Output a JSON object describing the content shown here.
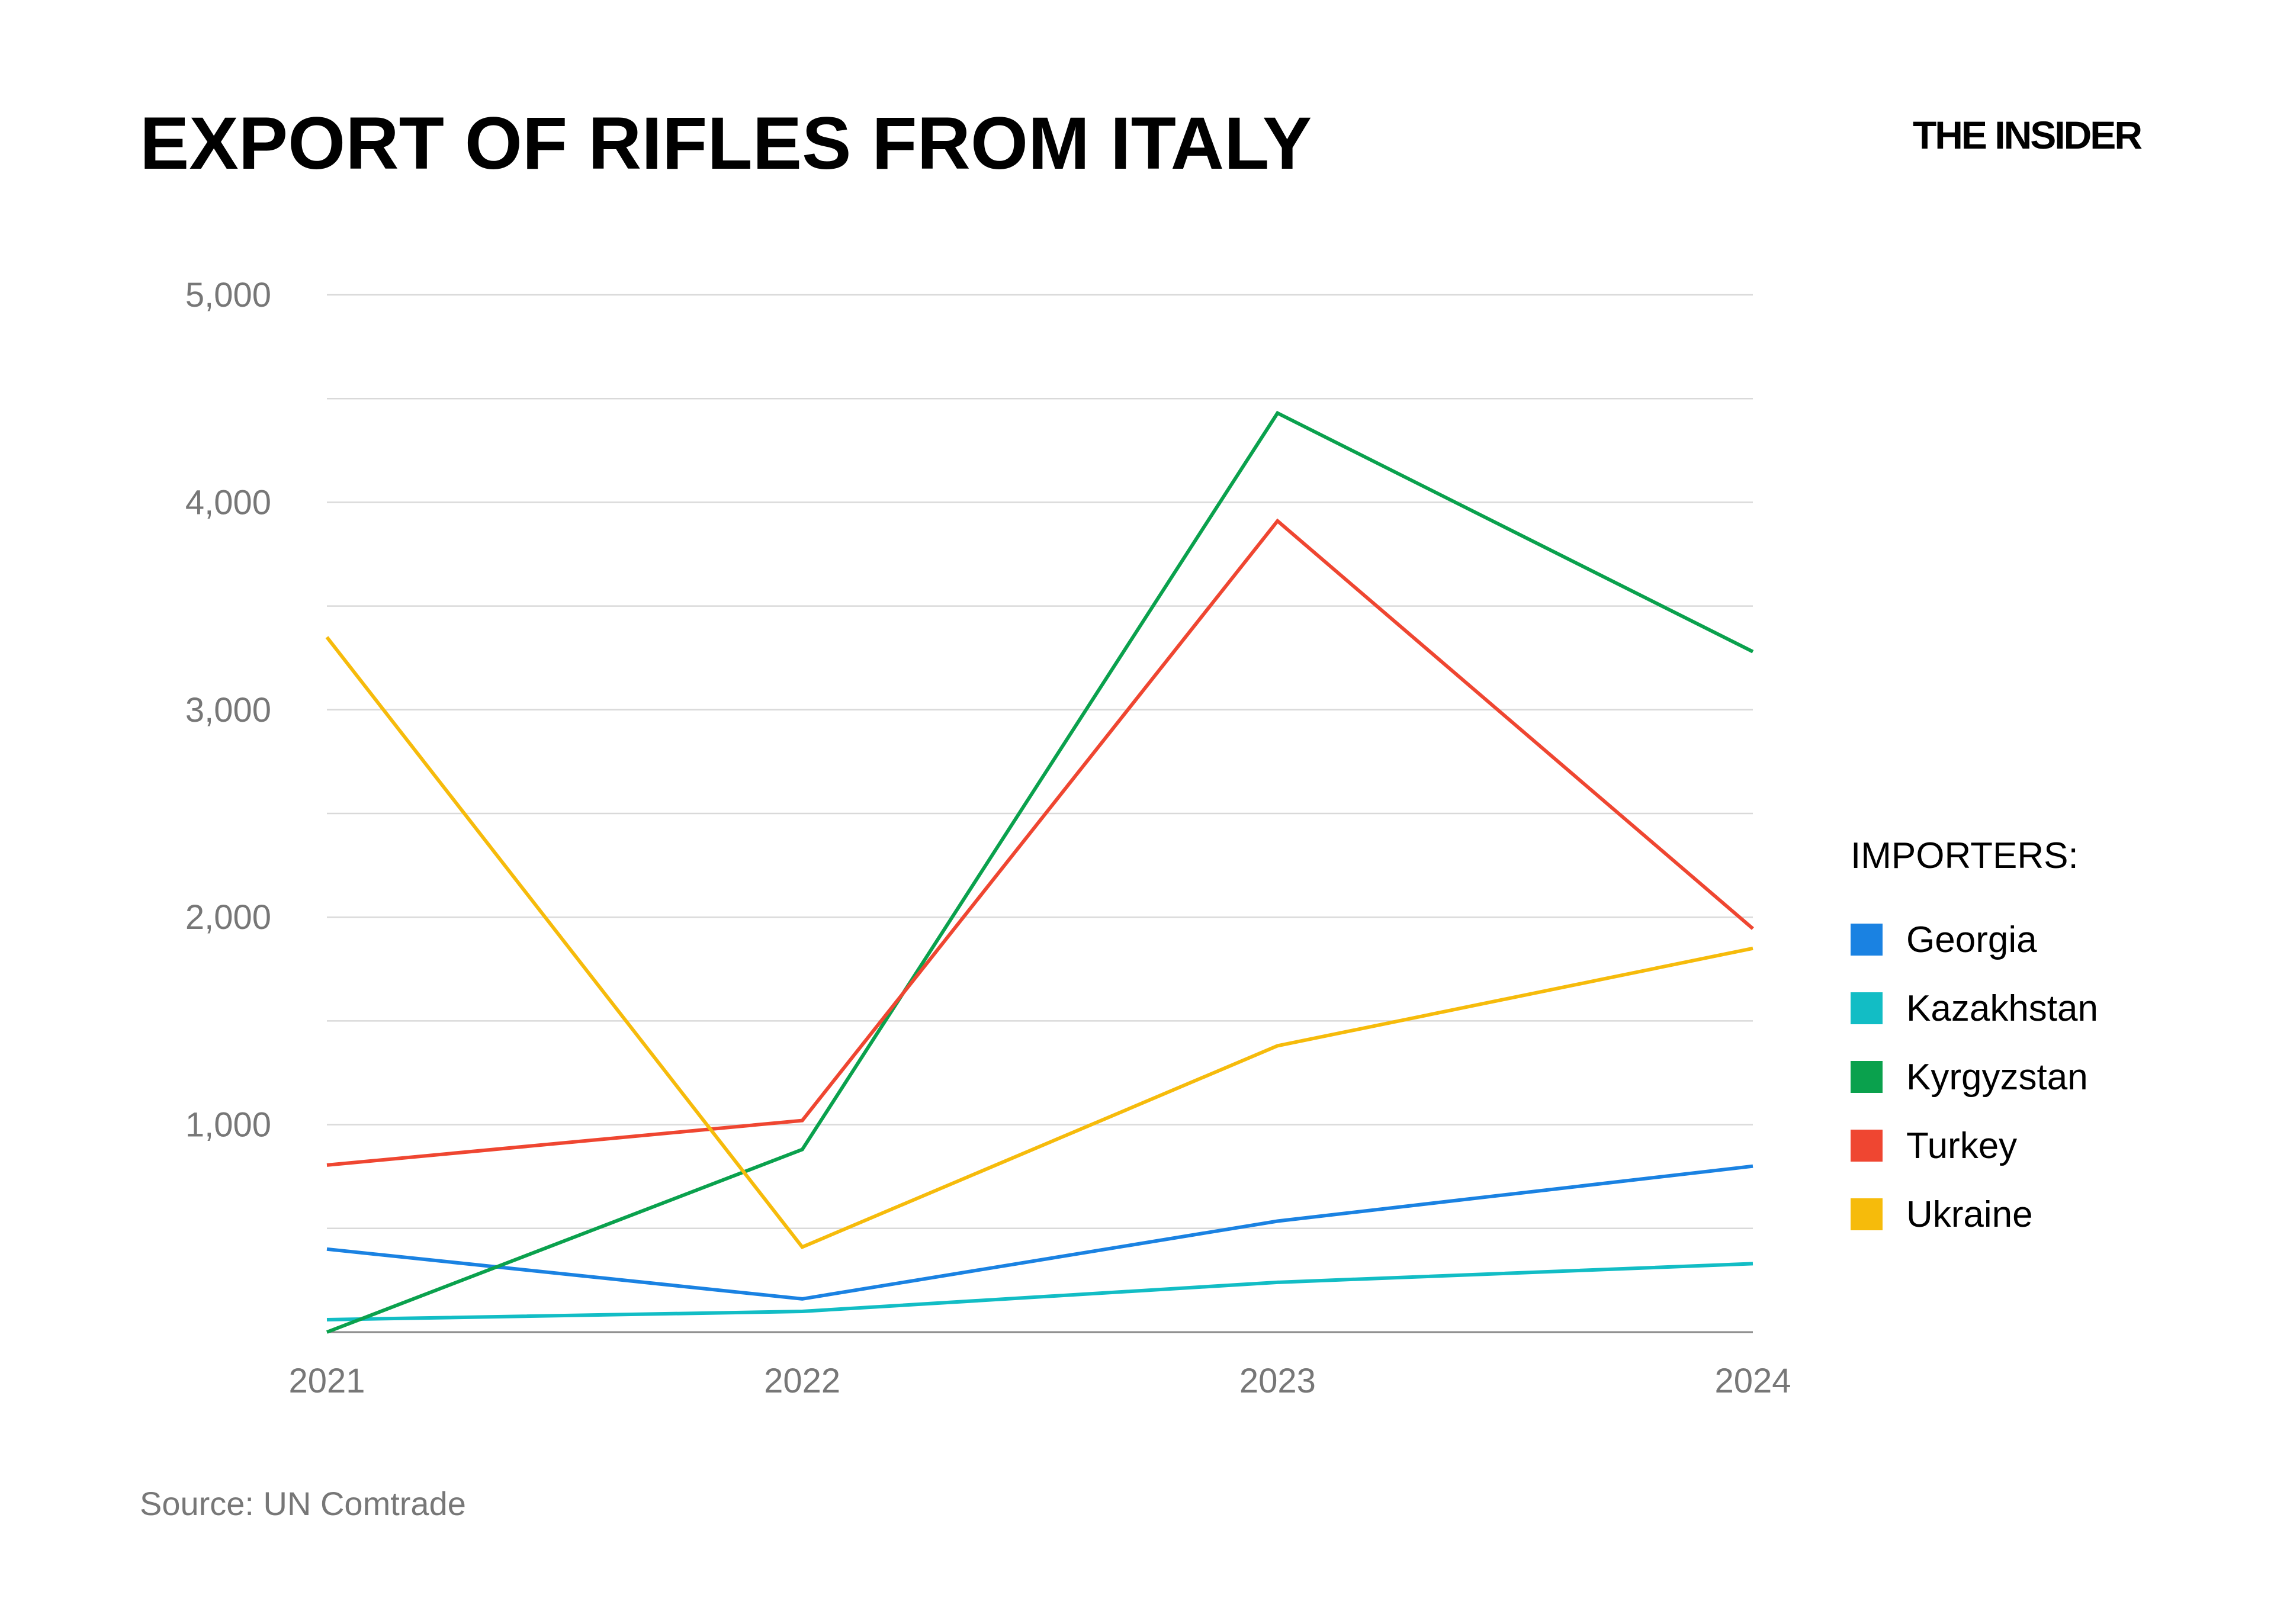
{
  "header": {
    "title": "EXPORT OF RIFLES FROM ITALY",
    "brand": "THE INSIDER"
  },
  "legend": {
    "title": "IMPORTERS:"
  },
  "footer": {
    "source": "Source: UN Comtrade"
  },
  "chart_data": {
    "type": "line",
    "title": "EXPORT OF RIFLES FROM ITALY",
    "xlabel": "",
    "ylabel": "",
    "x": [
      "2021",
      "2022",
      "2023",
      "2024"
    ],
    "ylim": [
      0,
      5000
    ],
    "yticks": [
      1000,
      2000,
      3000,
      4000,
      5000
    ],
    "ytick_labels": [
      "1,000",
      "2,000",
      "3,000",
      "4,000",
      "5,000"
    ],
    "grid": true,
    "gridline_step": 500,
    "legend_position": "right",
    "series": [
      {
        "name": "Georgia",
        "color": "#1a82e2",
        "values": [
          400,
          160,
          535,
          800
        ]
      },
      {
        "name": "Kazakhstan",
        "color": "#12bdc5",
        "values": [
          60,
          100,
          240,
          330
        ]
      },
      {
        "name": "Kyrgyzstan",
        "color": "#0aa14d",
        "values": [
          0,
          880,
          4430,
          3280
        ]
      },
      {
        "name": "Turkey",
        "color": "#ef4631",
        "values": [
          805,
          1020,
          3910,
          1945
        ]
      },
      {
        "name": "Ukraine",
        "color": "#f6bb0b",
        "values": [
          3350,
          410,
          1380,
          1850
        ]
      }
    ]
  }
}
